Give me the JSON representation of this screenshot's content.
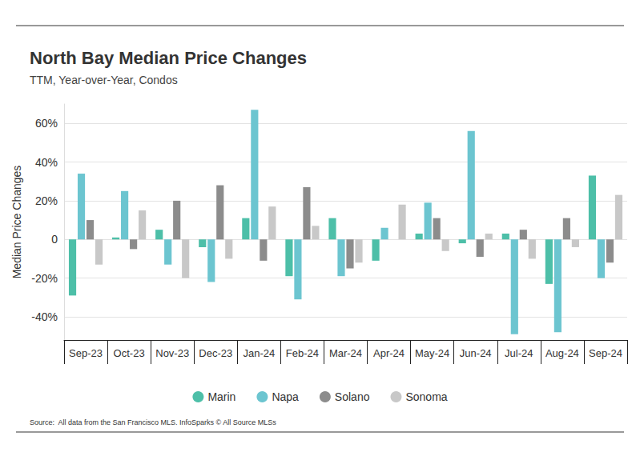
{
  "chart_data": {
    "type": "bar",
    "title": "North Bay Median Price Changes",
    "subtitle": "TTM, Year-over-Year, Condos",
    "y_label": "Median Price Changes",
    "source": "Source:  All data from the San Francisco MLS. InfoSparks © All Source MLSs",
    "categories": [
      "Sep-23",
      "Oct-23",
      "Nov-23",
      "Dec-23",
      "Jan-24",
      "Feb-24",
      "Mar-24",
      "Apr-24",
      "May-24",
      "Jun-24",
      "Jul-24",
      "Aug-24",
      "Sep-24"
    ],
    "series": [
      {
        "name": "Marin",
        "color": "#4dbfa8",
        "values": [
          -29,
          1,
          5,
          -4,
          11,
          -19,
          11,
          -11,
          3,
          -2,
          3,
          -23,
          33
        ]
      },
      {
        "name": "Napa",
        "color": "#6cc5d0",
        "values": [
          34,
          25,
          -13,
          -22,
          67,
          -31,
          -19,
          6,
          19,
          56,
          -49,
          -48,
          -20
        ]
      },
      {
        "name": "Solano",
        "color": "#8c8c8c",
        "values": [
          10,
          -5,
          20,
          28,
          -11,
          27,
          -15,
          0,
          11,
          -9,
          5,
          11,
          -12
        ]
      },
      {
        "name": "Sonoma",
        "color": "#c8c8c8",
        "values": [
          -13,
          15,
          -20,
          -10,
          17,
          7,
          -12,
          18,
          -6,
          3,
          -10,
          -4,
          23
        ]
      }
    ],
    "ylim": [
      -52,
      70
    ],
    "yticks": [
      {
        "value": -40,
        "label": "-40%"
      },
      {
        "value": -20,
        "label": "-20%"
      },
      0,
      {
        "value": 20,
        "label": "20%"
      },
      {
        "value": 40,
        "label": "40%"
      },
      {
        "value": 60,
        "label": "60%"
      }
    ],
    "grid": true,
    "legend": "bottom"
  }
}
